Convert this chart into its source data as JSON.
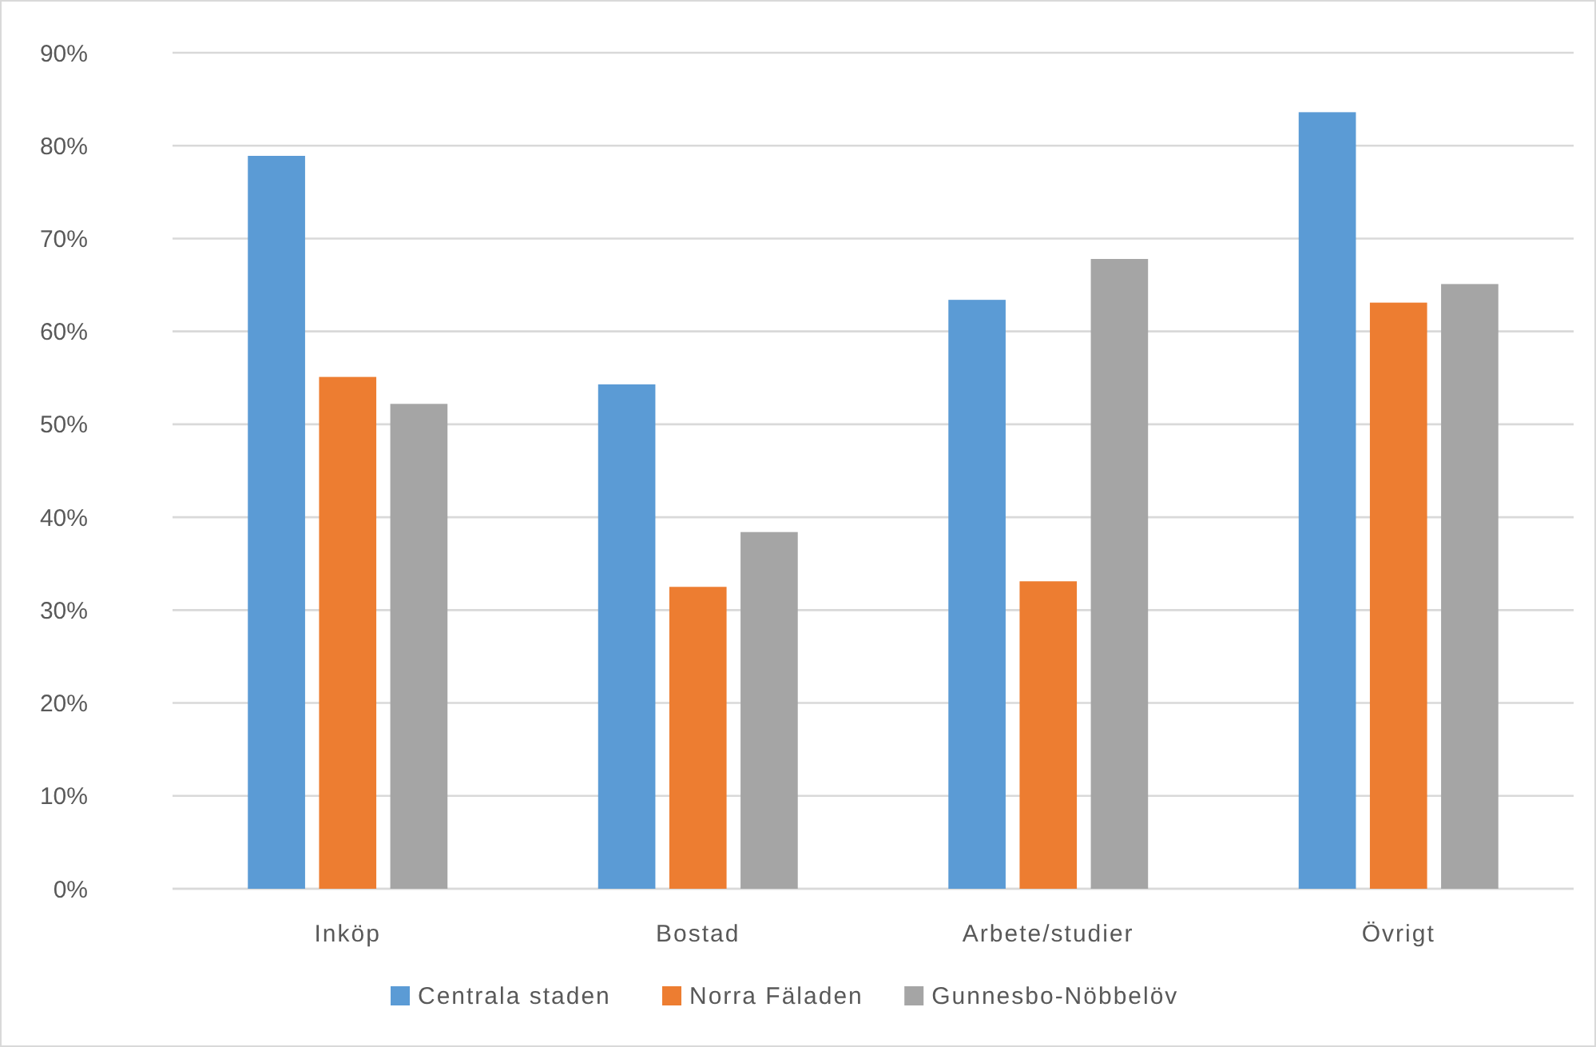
{
  "chart_data": {
    "type": "bar",
    "categories": [
      "Inköp",
      "Bostad",
      "Arbete/studier",
      "Övrigt"
    ],
    "series": [
      {
        "name": "Centrala staden",
        "color": "#5b9bd5",
        "values": [
          78.9,
          54.3,
          63.4,
          83.6
        ]
      },
      {
        "name": "Norra Fäladen",
        "color": "#ed7d31",
        "values": [
          55.1,
          32.5,
          33.1,
          63.1
        ]
      },
      {
        "name": "Gunnesbo-Nöbbelöv",
        "color": "#a5a5a5",
        "values": [
          52.2,
          38.4,
          67.8,
          65.1
        ]
      }
    ],
    "ylim": [
      0,
      90
    ],
    "yticks": [
      {
        "value": 0,
        "label": "0%"
      },
      {
        "value": 10,
        "label": "10%"
      },
      {
        "value": 20,
        "label": "20%"
      },
      {
        "value": 30,
        "label": "30%"
      },
      {
        "value": 40,
        "label": "40%"
      },
      {
        "value": 50,
        "label": "50%"
      },
      {
        "value": 60,
        "label": "60%"
      },
      {
        "value": 70,
        "label": "70%"
      },
      {
        "value": 80,
        "label": "80%"
      },
      {
        "value": 90,
        "label": "90%"
      }
    ],
    "grid": "y",
    "legend": "bottom"
  }
}
